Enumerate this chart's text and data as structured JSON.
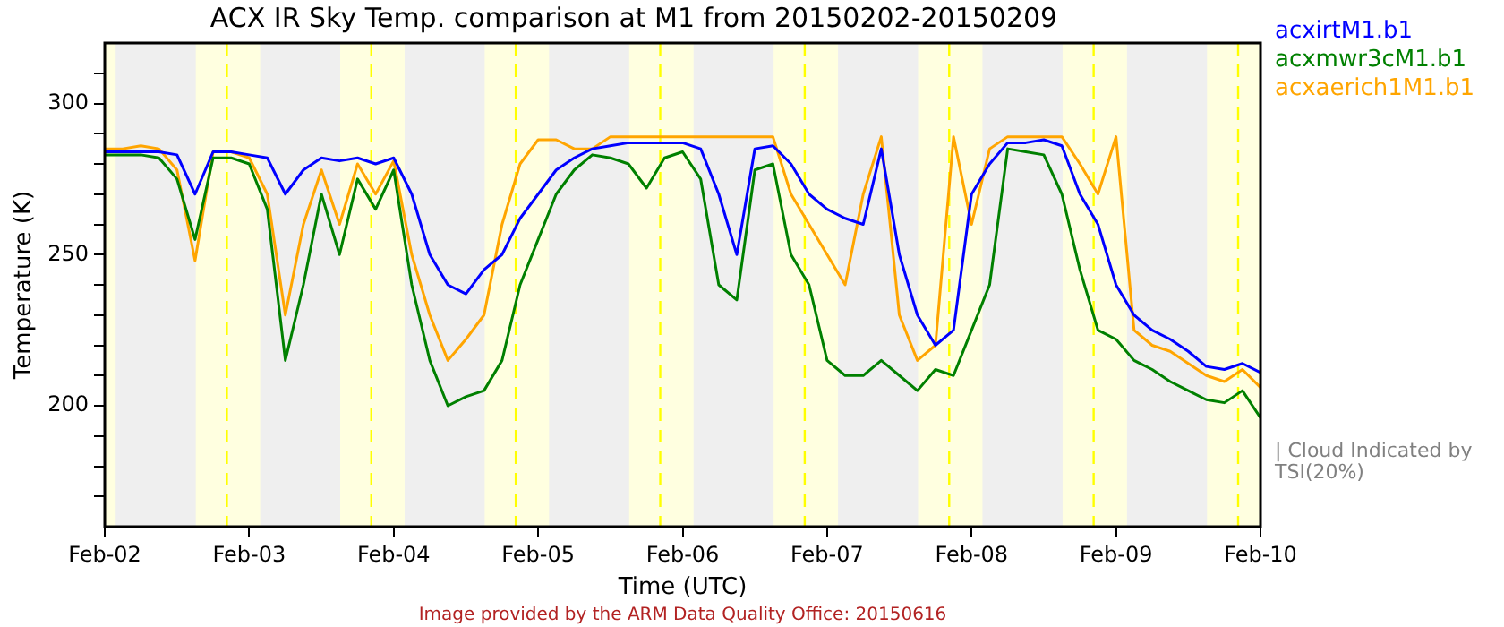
{
  "chart_data": {
    "type": "line",
    "title": "ACX IR Sky Temp. comparison at M1 from 20150202-20150209",
    "xlabel": "Time (UTC)",
    "ylabel": "Temperature (K)",
    "x": [
      "2015-02-02T00:00",
      "2015-02-02T03:00",
      "2015-02-02T06:00",
      "2015-02-02T09:00",
      "2015-02-02T12:00",
      "2015-02-02T15:00",
      "2015-02-02T18:00",
      "2015-02-02T21:00",
      "2015-02-03T00:00",
      "2015-02-03T03:00",
      "2015-02-03T06:00",
      "2015-02-03T09:00",
      "2015-02-03T12:00",
      "2015-02-03T15:00",
      "2015-02-03T18:00",
      "2015-02-03T21:00",
      "2015-02-04T00:00",
      "2015-02-04T03:00",
      "2015-02-04T06:00",
      "2015-02-04T09:00",
      "2015-02-04T12:00",
      "2015-02-04T15:00",
      "2015-02-04T18:00",
      "2015-02-04T21:00",
      "2015-02-05T00:00",
      "2015-02-05T03:00",
      "2015-02-05T06:00",
      "2015-02-05T09:00",
      "2015-02-05T12:00",
      "2015-02-05T15:00",
      "2015-02-05T18:00",
      "2015-02-05T21:00",
      "2015-02-06T00:00",
      "2015-02-06T03:00",
      "2015-02-06T06:00",
      "2015-02-06T09:00",
      "2015-02-06T12:00",
      "2015-02-06T15:00",
      "2015-02-06T18:00",
      "2015-02-06T21:00",
      "2015-02-07T00:00",
      "2015-02-07T03:00",
      "2015-02-07T06:00",
      "2015-02-07T09:00",
      "2015-02-07T12:00",
      "2015-02-07T15:00",
      "2015-02-07T18:00",
      "2015-02-07T21:00",
      "2015-02-08T00:00",
      "2015-02-08T03:00",
      "2015-02-08T06:00",
      "2015-02-08T09:00",
      "2015-02-08T12:00",
      "2015-02-08T15:00",
      "2015-02-08T18:00",
      "2015-02-08T21:00",
      "2015-02-09T00:00",
      "2015-02-09T03:00",
      "2015-02-09T06:00",
      "2015-02-09T09:00",
      "2015-02-09T12:00",
      "2015-02-09T15:00",
      "2015-02-09T18:00",
      "2015-02-09T21:00",
      "2015-02-10T00:00"
    ],
    "series": [
      {
        "name": "acxirtM1.b1",
        "color": "#0000ff",
        "values": [
          284,
          284,
          284,
          284,
          283,
          270,
          284,
          284,
          283,
          282,
          270,
          278,
          282,
          281,
          282,
          280,
          282,
          270,
          250,
          240,
          237,
          245,
          250,
          262,
          270,
          278,
          282,
          285,
          286,
          287,
          287,
          287,
          287,
          285,
          270,
          250,
          285,
          286,
          280,
          270,
          265,
          262,
          260,
          285,
          250,
          230,
          220,
          225,
          270,
          280,
          287,
          287,
          288,
          286,
          270,
          260,
          240,
          230,
          225,
          222,
          218,
          213,
          212,
          214,
          211
        ]
      },
      {
        "name": "acxmwr3cM1.b1",
        "color": "#008000",
        "values": [
          283,
          283,
          283,
          282,
          275,
          255,
          282,
          282,
          280,
          265,
          215,
          240,
          270,
          250,
          275,
          265,
          278,
          240,
          215,
          200,
          203,
          205,
          215,
          240,
          255,
          270,
          278,
          283,
          282,
          280,
          272,
          282,
          284,
          275,
          240,
          235,
          278,
          280,
          250,
          240,
          215,
          210,
          210,
          215,
          210,
          205,
          212,
          210,
          225,
          240,
          285,
          284,
          283,
          270,
          245,
          225,
          222,
          215,
          212,
          208,
          205,
          202,
          201,
          205,
          196
        ]
      },
      {
        "name": "acxaerich1M1.b1",
        "color": "#ffa500",
        "values": [
          285,
          285,
          286,
          285,
          278,
          248,
          284,
          284,
          282,
          270,
          230,
          260,
          278,
          260,
          280,
          270,
          281,
          250,
          230,
          215,
          222,
          230,
          260,
          280,
          288,
          288,
          285,
          285,
          289,
          289,
          289,
          289,
          289,
          289,
          289,
          289,
          289,
          289,
          270,
          260,
          250,
          240,
          270,
          289,
          230,
          215,
          220,
          289,
          260,
          285,
          289,
          289,
          289,
          289,
          280,
          270,
          289,
          225,
          220,
          218,
          214,
          210,
          208,
          212,
          206
        ]
      }
    ],
    "xlim": [
      "2015-02-02",
      "2015-02-10"
    ],
    "xticks": [
      {
        "value": "2015-02-02",
        "label": "Feb-02"
      },
      {
        "value": "2015-02-03",
        "label": "Feb-03"
      },
      {
        "value": "2015-02-04",
        "label": "Feb-04"
      },
      {
        "value": "2015-02-05",
        "label": "Feb-05"
      },
      {
        "value": "2015-02-06",
        "label": "Feb-06"
      },
      {
        "value": "2015-02-07",
        "label": "Feb-07"
      },
      {
        "value": "2015-02-08",
        "label": "Feb-08"
      },
      {
        "value": "2015-02-09",
        "label": "Feb-09"
      },
      {
        "value": "2015-02-10",
        "label": "Feb-10"
      }
    ],
    "ylim": [
      160,
      320
    ],
    "yticks": [
      {
        "value": 170,
        "label": null
      },
      {
        "value": 180,
        "label": null
      },
      {
        "value": 190,
        "label": null
      },
      200,
      {
        "value": 210,
        "label": null
      },
      {
        "value": 220,
        "label": null
      },
      {
        "value": 230,
        "label": null
      },
      {
        "value": 240,
        "label": null
      },
      250,
      {
        "value": 260,
        "label": null
      },
      {
        "value": 270,
        "label": null
      },
      {
        "value": 280,
        "label": null
      },
      {
        "value": 290,
        "label": null
      },
      300,
      {
        "value": 310,
        "label": null
      }
    ],
    "bands": [
      {
        "axis": "x",
        "from": "2015-02-02T00:00",
        "to": "2015-02-02T01:49",
        "color": "#ffffe0"
      },
      {
        "axis": "x",
        "from": "2015-02-02T15:07",
        "to": "2015-02-03T01:49",
        "color": "#ffffe0"
      },
      {
        "axis": "x",
        "from": "2015-02-03T15:07",
        "to": "2015-02-04T01:49",
        "color": "#ffffe0"
      },
      {
        "axis": "x",
        "from": "2015-02-04T15:07",
        "to": "2015-02-05T01:49",
        "color": "#ffffe0"
      },
      {
        "axis": "x",
        "from": "2015-02-05T15:07",
        "to": "2015-02-06T01:49",
        "color": "#ffffe0"
      },
      {
        "axis": "x",
        "from": "2015-02-06T15:07",
        "to": "2015-02-07T01:49",
        "color": "#ffffe0"
      },
      {
        "axis": "x",
        "from": "2015-02-07T15:07",
        "to": "2015-02-08T01:49",
        "color": "#ffffe0"
      },
      {
        "axis": "x",
        "from": "2015-02-08T15:07",
        "to": "2015-02-09T01:49",
        "color": "#ffffe0"
      },
      {
        "axis": "x",
        "from": "2015-02-09T15:07",
        "to": "2015-02-10T00:00",
        "color": "#ffffe0"
      }
    ],
    "ref_lines": [
      {
        "axis": "x",
        "value": "2015-02-02T20:17",
        "color": "#ffff00",
        "line_style": "dashed"
      },
      {
        "axis": "x",
        "value": "2015-02-03T20:17",
        "color": "#ffff00",
        "line_style": "dashed"
      },
      {
        "axis": "x",
        "value": "2015-02-04T20:17",
        "color": "#ffff00",
        "line_style": "dashed"
      },
      {
        "axis": "x",
        "value": "2015-02-05T20:17",
        "color": "#ffff00",
        "line_style": "dashed"
      },
      {
        "axis": "x",
        "value": "2015-02-06T20:17",
        "color": "#ffff00",
        "line_style": "dashed"
      },
      {
        "axis": "x",
        "value": "2015-02-07T20:17",
        "color": "#ffff00",
        "line_style": "dashed"
      },
      {
        "axis": "x",
        "value": "2015-02-08T20:17",
        "color": "#ffff00",
        "line_style": "dashed"
      },
      {
        "axis": "x",
        "value": "2015-02-09T20:17",
        "color": "#ffff00",
        "line_style": "dashed"
      }
    ],
    "annotations": [
      "| Cloud Indicated by TSI(20%)",
      "Image provided by the ARM Data Quality Office: 20150616"
    ],
    "legend": "top right",
    "marker": "none",
    "line_style": "solid"
  }
}
